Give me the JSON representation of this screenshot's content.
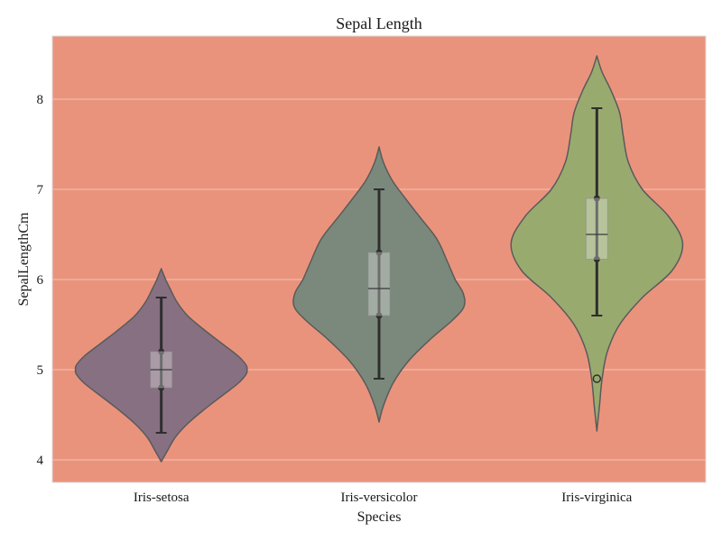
{
  "chart_data": {
    "type": "violin",
    "title": "Sepal Length",
    "xlabel": "Species",
    "ylabel": "SepalLengthCm",
    "categories": [
      "Iris-setosa",
      "Iris-versicolor",
      "Iris-virginica"
    ],
    "ylim": [
      3.75,
      8.7
    ],
    "yticks": [
      4,
      5,
      6,
      7,
      8
    ],
    "ytick_labels": [
      "4",
      "5",
      "6",
      "7",
      "8"
    ],
    "grid": true,
    "series": [
      {
        "name": "Iris-setosa",
        "color": "#867082",
        "violin": {
          "y": [
            3.98,
            4.1,
            4.25,
            4.4,
            4.55,
            4.7,
            4.85,
            4.95,
            5.0,
            5.05,
            5.15,
            5.3,
            5.45,
            5.6,
            5.75,
            5.9,
            6.0,
            6.12
          ],
          "width": [
            0.0,
            0.07,
            0.16,
            0.3,
            0.48,
            0.68,
            0.88,
            0.97,
            0.98,
            0.97,
            0.88,
            0.68,
            0.48,
            0.3,
            0.18,
            0.1,
            0.05,
            0.0
          ]
        },
        "box": {
          "min": 4.3,
          "q1": 4.8,
          "median": 5.0,
          "q3": 5.2,
          "max": 5.8
        },
        "outliers": []
      },
      {
        "name": "Iris-versicolor",
        "color": "#7a897b",
        "violin": {
          "y": [
            4.42,
            4.6,
            4.85,
            5.1,
            5.35,
            5.55,
            5.7,
            5.85,
            6.0,
            6.2,
            6.45,
            6.7,
            6.9,
            7.1,
            7.3,
            7.47
          ],
          "width": [
            0.0,
            0.05,
            0.16,
            0.34,
            0.6,
            0.84,
            0.97,
            0.96,
            0.87,
            0.78,
            0.66,
            0.46,
            0.3,
            0.15,
            0.05,
            0.0
          ]
        },
        "box": {
          "min": 4.9,
          "q1": 5.6,
          "median": 5.9,
          "q3": 6.3,
          "max": 7.0
        },
        "outliers": []
      },
      {
        "name": "Iris-virginica",
        "color": "#99aa6f",
        "violin": {
          "y": [
            4.32,
            4.6,
            4.9,
            5.2,
            5.5,
            5.8,
            6.1,
            6.4,
            6.7,
            7.0,
            7.3,
            7.6,
            7.85,
            8.1,
            8.3,
            8.48
          ],
          "width": [
            0.0,
            0.03,
            0.06,
            0.12,
            0.26,
            0.52,
            0.86,
            0.98,
            0.82,
            0.52,
            0.36,
            0.3,
            0.26,
            0.16,
            0.06,
            0.0
          ]
        },
        "box": {
          "min": 5.6,
          "q1": 6.225,
          "median": 6.5,
          "q3": 6.9,
          "max": 7.9
        },
        "outliers": [
          4.9
        ]
      }
    ],
    "colors": {
      "plot_background": "#ea937c",
      "page_background": "#ffffff",
      "grid": "#f2c3b6",
      "violin_edge": "#5a5a5a",
      "box_fill": "#ffffff",
      "whisker": "#2e2e2e",
      "text": "#1a1a1a"
    }
  }
}
